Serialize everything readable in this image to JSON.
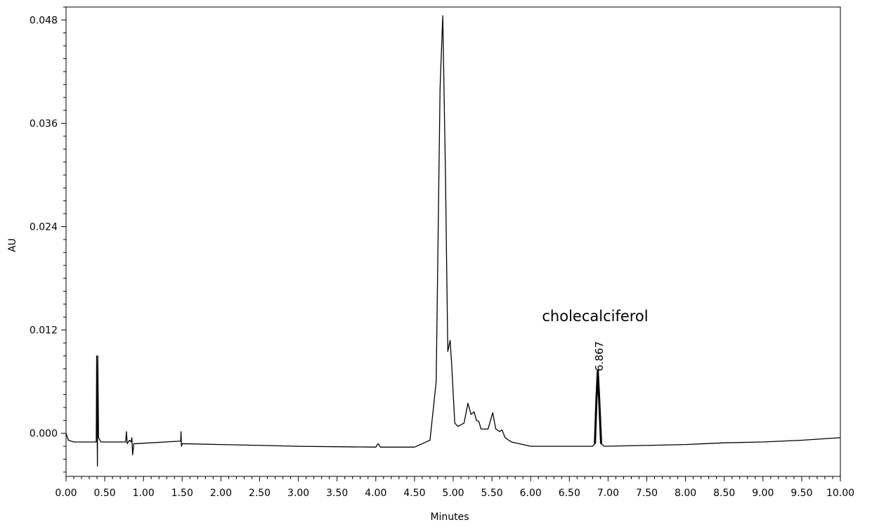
{
  "chart_data": {
    "type": "line",
    "xlabel": "Minutes",
    "ylabel": "AU",
    "xlim": [
      0.0,
      10.0
    ],
    "ylim": [
      -0.005,
      0.0495
    ],
    "x_ticks": [
      "0.00",
      "0.50",
      "1.00",
      "1.50",
      "2.00",
      "2.50",
      "3.00",
      "3.50",
      "4.00",
      "4.50",
      "5.00",
      "5.50",
      "6.00",
      "6.50",
      "7.00",
      "7.50",
      "8.00",
      "8.50",
      "9.00",
      "9.50",
      "10.00"
    ],
    "y_ticks": [
      "0.000",
      "0.012",
      "0.024",
      "0.036",
      "0.048"
    ],
    "grid": false,
    "annotations": {
      "compound_label": "cholecalciferol",
      "peak_rt_label": "6.867"
    },
    "series": [
      {
        "points": [
          [
            0.0,
            0.0
          ],
          [
            0.03,
            -0.0008
          ],
          [
            0.1,
            -0.001
          ],
          [
            0.39,
            -0.001
          ],
          [
            0.395,
            0.009
          ],
          [
            0.405,
            -0.0038
          ],
          [
            0.41,
            0.009
          ],
          [
            0.42,
            -0.0005
          ],
          [
            0.45,
            -0.001
          ],
          [
            0.77,
            -0.001
          ],
          [
            0.78,
            0.0002
          ],
          [
            0.79,
            -0.0012
          ],
          [
            0.82,
            -0.0008
          ],
          [
            0.84,
            -0.001
          ],
          [
            0.85,
            -0.0005
          ],
          [
            0.86,
            -0.0025
          ],
          [
            0.875,
            -0.0012
          ],
          [
            0.9,
            -0.0012
          ],
          [
            1.48,
            -0.0009
          ],
          [
            1.485,
            0.0002
          ],
          [
            1.49,
            -0.0015
          ],
          [
            1.5,
            -0.0012
          ],
          [
            2.0,
            -0.0013
          ],
          [
            3.0,
            -0.0015
          ],
          [
            4.0,
            -0.0016
          ],
          [
            4.03,
            -0.0012
          ],
          [
            4.06,
            -0.0016
          ],
          [
            4.5,
            -0.0016
          ],
          [
            4.6,
            -0.0012
          ],
          [
            4.7,
            -0.0008
          ],
          [
            4.78,
            0.006
          ],
          [
            4.83,
            0.04
          ],
          [
            4.865,
            0.0485
          ],
          [
            4.9,
            0.03
          ],
          [
            4.93,
            0.0095
          ],
          [
            4.96,
            0.0108
          ],
          [
            4.98,
            0.008
          ],
          [
            5.02,
            0.0012
          ],
          [
            5.06,
            0.0008
          ],
          [
            5.1,
            0.001
          ],
          [
            5.14,
            0.0012
          ],
          [
            5.19,
            0.0035
          ],
          [
            5.23,
            0.0022
          ],
          [
            5.27,
            0.0025
          ],
          [
            5.3,
            0.0015
          ],
          [
            5.33,
            0.0014
          ],
          [
            5.36,
            0.0005
          ],
          [
            5.4,
            0.0005
          ],
          [
            5.45,
            0.0005
          ],
          [
            5.51,
            0.0024
          ],
          [
            5.55,
            0.0005
          ],
          [
            5.6,
            0.0002
          ],
          [
            5.63,
            0.0004
          ],
          [
            5.67,
            -0.0005
          ],
          [
            5.75,
            -0.001
          ],
          [
            5.9,
            -0.0013
          ],
          [
            6.0,
            -0.0015
          ],
          [
            6.5,
            -0.0015
          ],
          [
            6.8,
            -0.0015
          ],
          [
            6.83,
            -0.0012
          ],
          [
            6.85,
            0.004
          ],
          [
            6.867,
            0.0072
          ],
          [
            6.885,
            0.004
          ],
          [
            6.91,
            -0.0012
          ],
          [
            6.95,
            -0.0015
          ],
          [
            7.5,
            -0.0014
          ],
          [
            8.0,
            -0.0013
          ],
          [
            8.5,
            -0.0011
          ],
          [
            9.0,
            -0.001
          ],
          [
            9.5,
            -0.0008
          ],
          [
            10.0,
            -0.0005
          ]
        ]
      }
    ]
  }
}
